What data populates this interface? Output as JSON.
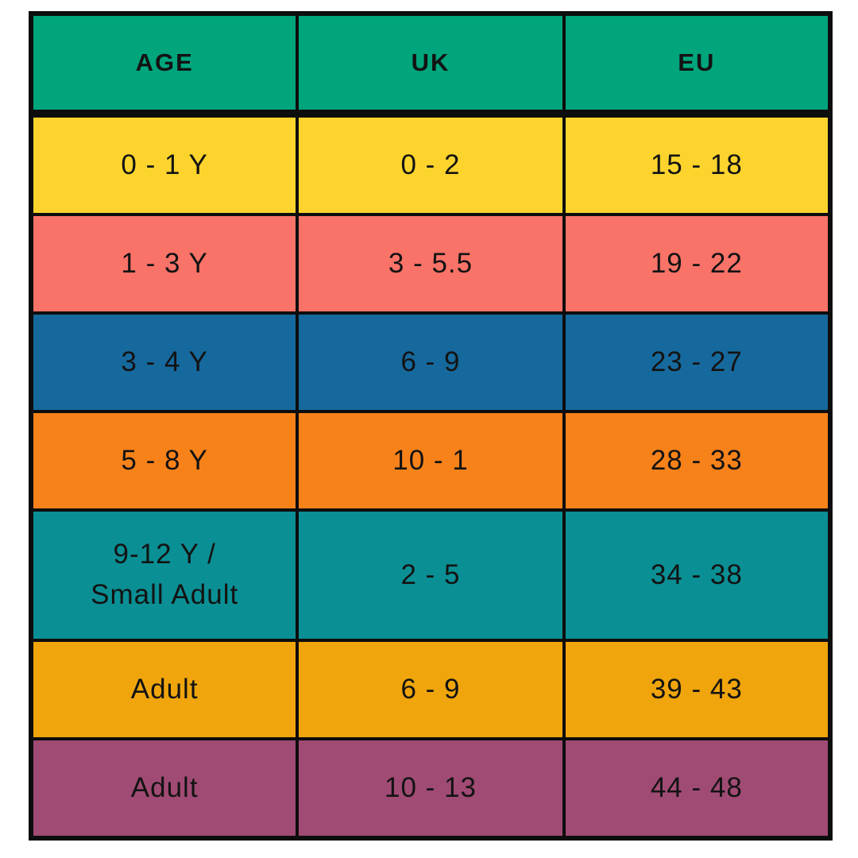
{
  "chart_data": {
    "type": "table",
    "columns": [
      "AGE",
      "UK",
      "EU"
    ],
    "rows": [
      [
        "0 - 1 Y",
        "0 - 2",
        "15 - 18"
      ],
      [
        "1 - 3 Y",
        "3 - 5.5",
        "19 - 22"
      ],
      [
        "3 - 4 Y",
        "6 - 9",
        "23 - 27"
      ],
      [
        "5 - 8 Y",
        "10 - 1",
        "28 - 33"
      ],
      [
        "9-12 Y /\nSmall Adult",
        "2 - 5",
        "34 - 38"
      ],
      [
        "Adult",
        "6 - 9",
        "39 - 43"
      ],
      [
        "Adult",
        "10 - 13",
        "44 - 48"
      ]
    ],
    "layout": {
      "grid": "black borders, thick divider under header",
      "legend": "none",
      "tall_row_index": 4
    }
  },
  "table": {
    "header_bg": "#00A57C",
    "row_colors": [
      "#FDD42D",
      "#FA7368",
      "#16699D",
      "#F8821A",
      "#0A8F94",
      "#F0A50C",
      "#A04B74"
    ],
    "border_color": "#0d0d0d",
    "text_color": "#131313",
    "background": "#ffffff"
  }
}
